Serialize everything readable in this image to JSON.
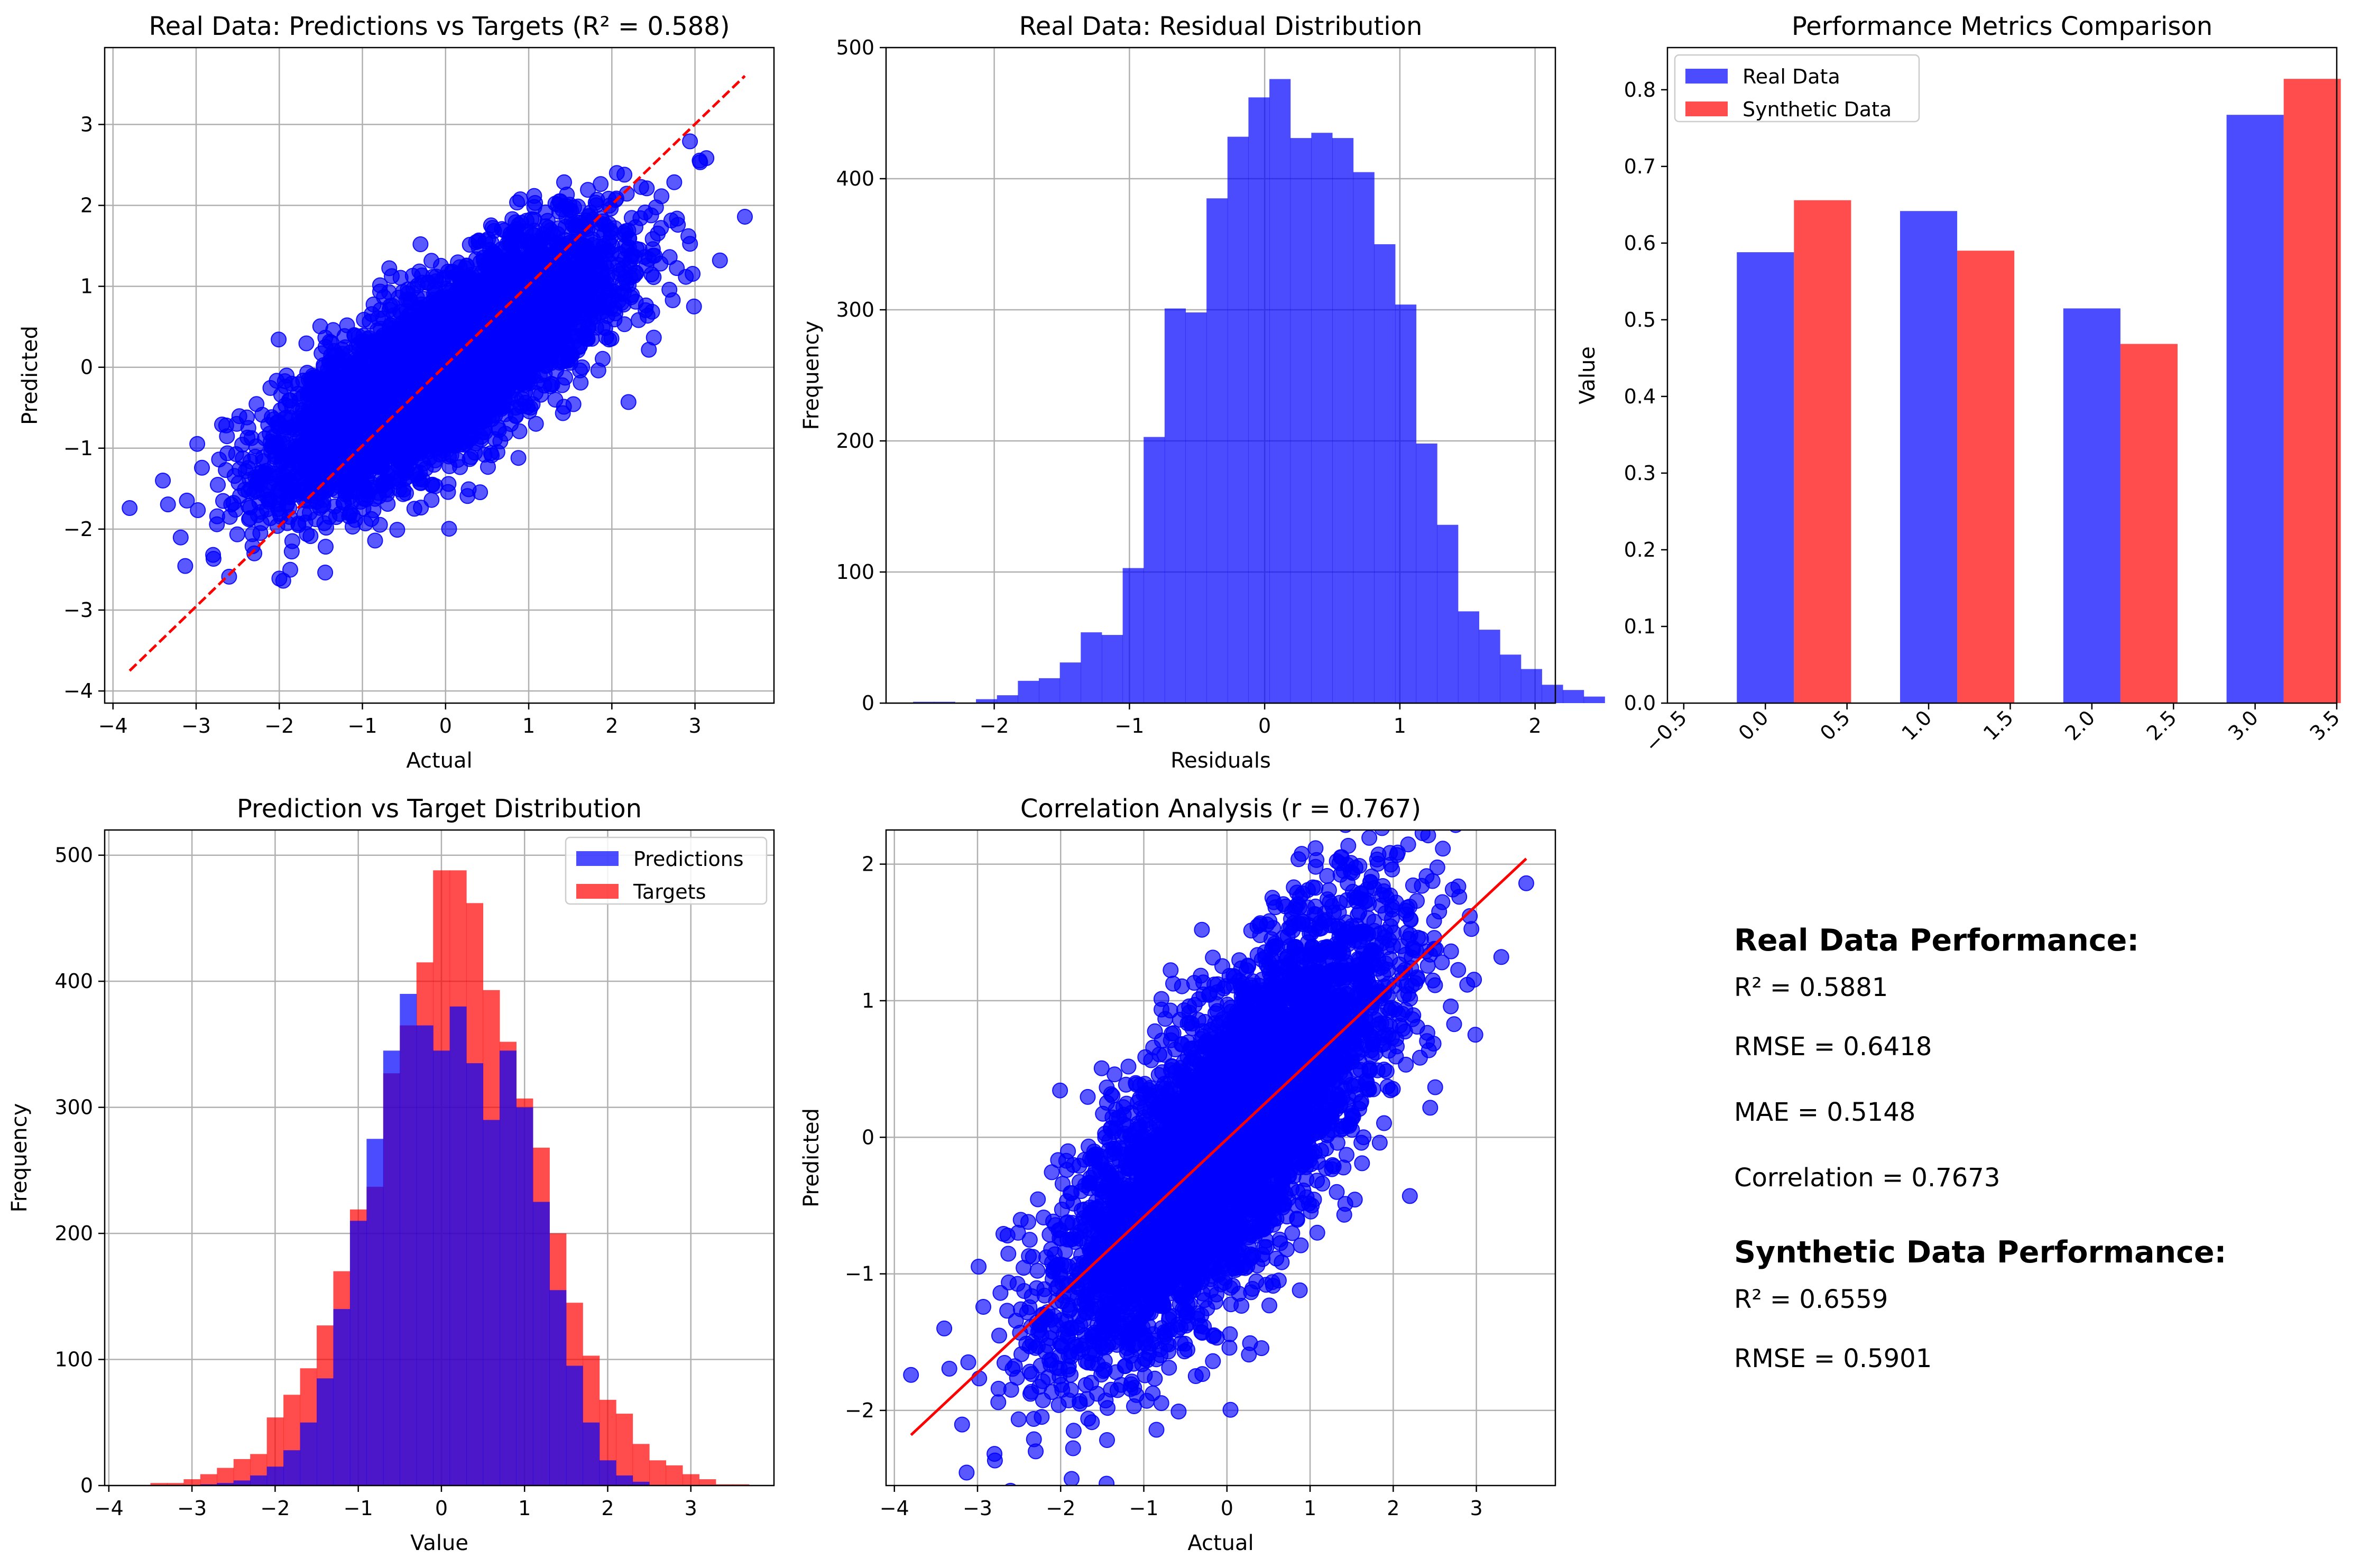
{
  "chart_data": [
    {
      "type": "scatter",
      "title": "Real Data: Predictions vs Targets (R² = 0.588)",
      "xlabel": "Actual",
      "ylabel": "Predicted",
      "xlim": [
        -4.1,
        3.95
      ],
      "ylim": [
        -4.15,
        3.95
      ],
      "xticks": [
        -4,
        -3,
        -2,
        -1,
        0,
        1,
        2,
        3
      ],
      "yticks": [
        -4,
        -3,
        -2,
        -1,
        0,
        1,
        2,
        3
      ],
      "grid": true,
      "point_color": "#0000ff",
      "point_alpha": 0.65,
      "n_points": 5000,
      "slope": 0.588,
      "noise_sd": 0.52,
      "extremes": [
        [
          -3.8,
          -1.74
        ],
        [
          3.6,
          1.86
        ],
        [
          -3.4,
          -1.4
        ],
        [
          3.3,
          1.32
        ],
        [
          -2.3,
          -2.3
        ],
        [
          2.2,
          -0.43
        ]
      ],
      "reference_line": {
        "from": [
          -3.8,
          -3.75
        ],
        "to": [
          3.6,
          3.6
        ],
        "color": "#ff0000",
        "style": "dashed"
      }
    },
    {
      "type": "bar",
      "subtype": "histogram",
      "title": "Real Data: Residual Distribution",
      "xlabel": "Residuals",
      "ylabel": "Frequency",
      "xlim": [
        -2.8,
        2.15
      ],
      "ylim": [
        0,
        500
      ],
      "xticks": [
        -2,
        -1,
        0,
        1,
        2
      ],
      "yticks": [
        0,
        100,
        200,
        300,
        400,
        500
      ],
      "grid": true,
      "color": "#0000ff",
      "alpha": 0.7,
      "bin_start": -2.6,
      "bin_width": 0.155,
      "values": [
        1,
        1,
        0,
        3,
        6,
        17,
        19,
        31,
        54,
        52,
        103,
        203,
        301,
        298,
        385,
        432,
        462,
        476,
        431,
        435,
        431,
        405,
        350,
        304,
        198,
        136,
        70,
        56,
        37,
        26,
        14,
        10,
        5
      ]
    },
    {
      "type": "bar",
      "title": "Performance Metrics Comparison",
      "xlabel": "",
      "ylabel": "Value",
      "xlim": [
        -0.6,
        3.5
      ],
      "ylim": [
        0,
        0.855
      ],
      "xticks": [
        "-0.5",
        "0.0",
        "0.5",
        "1.0",
        "1.5",
        "2.0",
        "2.5",
        "3.0",
        "3.5"
      ],
      "yticks": [
        "0.0",
        "0.1",
        "0.2",
        "0.3",
        "0.4",
        "0.5",
        "0.6",
        "0.7",
        "0.8"
      ],
      "grid": false,
      "categories": [
        0,
        1,
        2,
        3
      ],
      "bar_width": 0.35,
      "legend_position": "top-left",
      "series": [
        {
          "name": "Real Data",
          "color": "#0000ff",
          "alpha": 0.7,
          "values": [
            0.5881,
            0.6418,
            0.5148,
            0.7673
          ]
        },
        {
          "name": "Synthetic Data",
          "color": "#ff0000",
          "alpha": 0.7,
          "values": [
            0.6559,
            0.5901,
            0.4685,
            0.8142
          ]
        }
      ]
    },
    {
      "type": "bar",
      "subtype": "overlaid-histogram",
      "title": "Prediction vs Target Distribution",
      "xlabel": "Value",
      "ylabel": "Frequency",
      "xlim": [
        -4.05,
        4.0
      ],
      "ylim": [
        0,
        520
      ],
      "xticks": [
        -4,
        -3,
        -2,
        -1,
        0,
        1,
        2,
        3
      ],
      "yticks": [
        0,
        100,
        200,
        300,
        400,
        500
      ],
      "grid": true,
      "legend_position": "top-right",
      "series": [
        {
          "name": "Predictions",
          "color": "#0000ff",
          "alpha": 0.7,
          "bin_start": -2.9,
          "bin_width": 0.2,
          "values": [
            1,
            2,
            4,
            8,
            15,
            28,
            50,
            85,
            140,
            210,
            275,
            345,
            390,
            365,
            345,
            380,
            335,
            290,
            345,
            300,
            225,
            155,
            95,
            50,
            20,
            8,
            3
          ]
        },
        {
          "name": "Targets",
          "color": "#ff0000",
          "alpha": 0.7,
          "bin_start": -3.5,
          "bin_width": 0.2,
          "values": [
            2,
            2,
            5,
            9,
            14,
            21,
            25,
            54,
            72,
            93,
            127,
            170,
            219,
            237,
            327,
            365,
            415,
            488,
            488,
            462,
            393,
            352,
            307,
            268,
            200,
            145,
            103,
            68,
            57,
            33,
            20,
            16,
            9,
            5,
            1,
            1
          ]
        }
      ],
      "overlap_color": "#c8174a"
    },
    {
      "type": "scatter",
      "title": "Correlation Analysis (r = 0.767)",
      "xlabel": "Actual",
      "ylabel": "Predicted",
      "xlim": [
        -4.1,
        3.95
      ],
      "ylim": [
        -2.55,
        2.25
      ],
      "xticks": [
        -4,
        -3,
        -2,
        -1,
        0,
        1,
        2,
        3
      ],
      "yticks": [
        -2,
        -1,
        0,
        1,
        2
      ],
      "grid": true,
      "point_color": "#0000ff",
      "point_alpha": 0.65,
      "n_points": 5000,
      "slope": 0.588,
      "noise_sd": 0.52,
      "extremes": [
        [
          -3.8,
          -1.74
        ],
        [
          3.6,
          1.86
        ],
        [
          -3.4,
          -1.4
        ],
        [
          3.3,
          1.32
        ],
        [
          -2.3,
          -2.3
        ],
        [
          2.2,
          -0.43
        ]
      ],
      "fit_line": {
        "from": [
          -3.8,
          -2.18
        ],
        "to": [
          3.6,
          2.04
        ],
        "color": "#ff0000",
        "style": "solid"
      }
    }
  ],
  "stats": {
    "real_heading": "Real Data Performance:",
    "real_r2": "R² = 0.5881",
    "real_rmse": "RMSE = 0.6418",
    "real_mae": "MAE = 0.5148",
    "real_corr": "Correlation = 0.7673",
    "syn_heading": "Synthetic Data Performance:",
    "syn_r2": "R² = 0.6559",
    "syn_rmse": "RMSE = 0.5901"
  }
}
